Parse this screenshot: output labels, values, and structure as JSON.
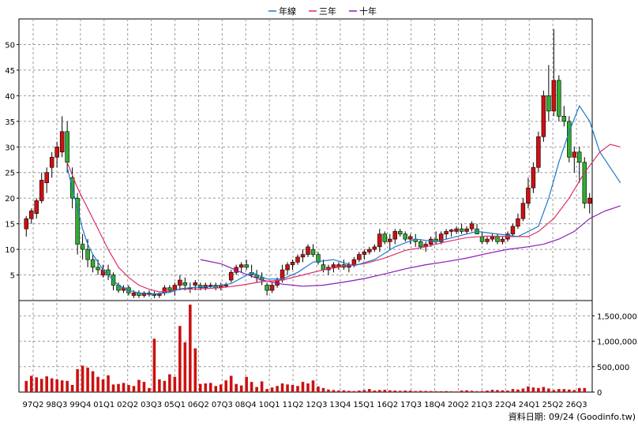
{
  "chart_data": {
    "type": "candlestick",
    "legend": [
      {
        "label": "年線",
        "color": "#1f77c8"
      },
      {
        "label": "三年",
        "color": "#dc2e64"
      },
      {
        "label": "十年",
        "color": "#8a1ab8"
      }
    ],
    "x_ticks": [
      "97Q2",
      "98Q3",
      "99Q4",
      "01Q1",
      "02Q2",
      "03Q3",
      "05Q1",
      "06Q2",
      "07Q3",
      "08Q4",
      "10Q1",
      "11Q2",
      "12Q3",
      "13Q4",
      "15Q1",
      "16Q2",
      "17Q3",
      "18Q4",
      "20Q2",
      "21Q3",
      "22Q4",
      "24Q1",
      "25Q2",
      "26Q3"
    ],
    "price_ticks": [
      "5",
      "10",
      "15",
      "20",
      "25",
      "30",
      "35",
      "40",
      "45",
      "50"
    ],
    "price_ylim": [
      0,
      55
    ],
    "volume_ticks": [
      "0",
      "500,000",
      "1,000,000",
      "1,500,000"
    ],
    "volume_ylim": [
      0,
      1800000
    ],
    "grid": true,
    "colors": {
      "up": "#d01010",
      "down": "#2fae2f",
      "volume": "#cc1111"
    },
    "candles": [
      [
        14,
        16.5,
        12.5,
        16
      ],
      [
        16,
        18,
        15,
        17.5
      ],
      [
        17,
        20,
        16,
        19.5
      ],
      [
        19.5,
        25,
        19,
        23.5
      ],
      [
        23,
        26,
        21,
        25
      ],
      [
        26,
        29,
        24,
        28
      ],
      [
        28,
        31,
        26,
        30
      ],
      [
        29,
        36,
        28,
        33
      ],
      [
        33,
        35,
        25,
        27
      ],
      [
        24,
        26,
        18,
        20
      ],
      [
        20,
        21,
        9,
        11
      ],
      [
        11,
        13,
        8,
        10
      ],
      [
        10,
        12,
        6.5,
        8
      ],
      [
        8,
        9,
        5.5,
        6.5
      ],
      [
        6.5,
        8,
        5,
        6
      ],
      [
        5,
        7,
        4.5,
        6
      ],
      [
        6,
        7,
        4,
        5
      ],
      [
        5,
        5.5,
        2,
        3
      ],
      [
        3,
        3.5,
        1.5,
        2
      ],
      [
        2,
        3,
        1.5,
        2.5
      ],
      [
        2.5,
        3,
        1,
        1.5
      ],
      [
        1,
        2,
        0.5,
        1.5
      ],
      [
        1.5,
        2,
        0.5,
        1
      ],
      [
        1,
        1.8,
        0.6,
        1.5
      ],
      [
        1.5,
        2,
        0.8,
        1.2
      ],
      [
        1.2,
        1.8,
        0.5,
        1
      ],
      [
        1,
        1.5,
        0.5,
        1.3
      ],
      [
        1.5,
        3,
        1,
        2.5
      ],
      [
        2.5,
        3,
        1.5,
        2
      ],
      [
        2,
        3.5,
        1,
        3
      ],
      [
        3,
        5,
        2,
        4
      ],
      [
        3.5,
        4.5,
        2,
        3
      ],
      [
        2.5,
        3.5,
        1.5,
        2.5
      ],
      [
        3,
        4,
        2,
        3.5
      ],
      [
        3,
        3.5,
        2,
        2.5
      ],
      [
        2.5,
        3.5,
        2,
        3
      ],
      [
        3,
        3.5,
        2.5,
        3
      ],
      [
        3,
        3.5,
        2,
        2.5
      ],
      [
        2.5,
        3.5,
        2,
        3
      ],
      [
        3,
        3.5,
        2.5,
        3
      ],
      [
        4,
        6,
        3.5,
        5.5
      ],
      [
        5.5,
        7,
        5,
        6.5
      ],
      [
        6.5,
        7.5,
        5.5,
        7
      ],
      [
        7,
        8,
        6,
        6.5
      ],
      [
        5.5,
        7,
        4.5,
        5
      ],
      [
        5,
        6,
        3.5,
        4.5
      ],
      [
        4.5,
        5.5,
        3,
        4
      ],
      [
        3,
        3.5,
        1,
        2
      ],
      [
        2,
        3.5,
        1.5,
        3
      ],
      [
        3,
        4.5,
        2.5,
        4
      ],
      [
        4,
        7,
        3.5,
        6
      ],
      [
        6,
        7.5,
        5,
        7
      ],
      [
        7,
        8,
        6,
        7.5
      ],
      [
        7.5,
        9,
        7,
        8.5
      ],
      [
        8.5,
        10,
        7.5,
        9
      ],
      [
        9,
        11,
        8.5,
        10.5
      ],
      [
        10,
        11,
        8.5,
        9
      ],
      [
        9,
        9.5,
        7,
        7.5
      ],
      [
        7,
        8,
        5.5,
        6
      ],
      [
        6,
        7,
        5,
        6.5
      ],
      [
        6.5,
        7.5,
        5.5,
        7
      ],
      [
        6.5,
        7.5,
        6,
        7
      ],
      [
        7,
        8,
        6,
        6.5
      ],
      [
        6.5,
        7.5,
        5.5,
        7
      ],
      [
        7,
        8.5,
        6.5,
        8
      ],
      [
        8,
        9.5,
        7.5,
        9
      ],
      [
        9,
        10,
        8,
        9.5
      ],
      [
        9.5,
        10.5,
        9,
        10
      ],
      [
        10,
        11,
        9.5,
        10.5
      ],
      [
        10.5,
        14,
        9.5,
        13
      ],
      [
        13,
        13.5,
        11,
        11.5
      ],
      [
        11.5,
        13,
        10,
        12
      ],
      [
        12,
        14,
        11,
        13.5
      ],
      [
        13.5,
        14,
        12.5,
        13
      ],
      [
        13,
        13.5,
        11.5,
        12
      ],
      [
        12,
        13,
        11,
        12.5
      ],
      [
        12,
        13,
        10.5,
        11.5
      ],
      [
        11.5,
        12,
        10,
        10.5
      ],
      [
        10.5,
        11.5,
        9.5,
        11
      ],
      [
        11,
        12.5,
        10.5,
        12
      ],
      [
        12,
        13.5,
        11,
        11.5
      ],
      [
        11.5,
        13.5,
        11,
        13
      ],
      [
        13,
        14,
        12,
        13.5
      ],
      [
        13.5,
        14,
        12.5,
        13.8
      ],
      [
        13.5,
        14.5,
        13,
        14
      ],
      [
        14,
        15,
        13,
        13.5
      ],
      [
        13.5,
        14.5,
        13,
        14
      ],
      [
        14,
        15.5,
        13.5,
        15
      ],
      [
        14,
        15,
        13,
        13
      ],
      [
        12.5,
        13.5,
        11,
        11.5
      ],
      [
        11.5,
        12.5,
        11,
        12
      ],
      [
        12,
        13,
        11.5,
        12.5
      ],
      [
        12.5,
        13,
        11,
        11.5
      ],
      [
        11.5,
        12.5,
        11,
        12
      ],
      [
        12,
        13.5,
        11.5,
        13
      ],
      [
        13,
        15,
        12.5,
        14.5
      ],
      [
        14.5,
        17,
        14,
        16
      ],
      [
        16,
        20,
        15.5,
        19
      ],
      [
        19,
        24,
        18,
        22
      ],
      [
        22,
        27,
        21,
        26
      ],
      [
        26,
        33,
        25,
        32
      ],
      [
        32,
        41,
        31,
        40
      ],
      [
        40,
        46,
        35,
        37
      ],
      [
        37,
        53,
        36,
        43
      ],
      [
        43,
        44,
        35,
        36
      ],
      [
        36,
        38,
        34,
        35
      ],
      [
        35,
        36,
        27,
        28
      ],
      [
        28,
        30,
        25,
        29
      ],
      [
        29,
        30,
        23,
        27
      ],
      [
        27,
        28,
        18,
        19
      ],
      [
        19,
        21,
        17,
        20
      ]
    ],
    "volumes": [
      220000,
      320000,
      290000,
      260000,
      310000,
      270000,
      250000,
      230000,
      220000,
      140000,
      450000,
      520000,
      480000,
      410000,
      300000,
      250000,
      330000,
      150000,
      160000,
      180000,
      140000,
      120000,
      240000,
      200000,
      80000,
      1050000,
      250000,
      220000,
      350000,
      300000,
      1300000,
      980000,
      1720000,
      860000,
      160000,
      170000,
      180000,
      120000,
      150000,
      230000,
      320000,
      160000,
      130000,
      300000,
      200000,
      100000,
      210000,
      60000,
      90000,
      120000,
      170000,
      150000,
      140000,
      120000,
      200000,
      170000,
      230000,
      110000,
      80000,
      50000,
      40000,
      30000,
      35000,
      25000,
      20000,
      30000,
      40000,
      60000,
      30000,
      40000,
      45000,
      35000,
      30000,
      25000,
      30000,
      28000,
      20000,
      25000,
      22000,
      20000,
      18000,
      16000,
      20000,
      15000,
      14000,
      30000,
      35000,
      25000,
      18000,
      20000,
      30000,
      45000,
      40000,
      35000,
      30000,
      60000,
      50000,
      70000,
      110000,
      90000,
      80000,
      100000,
      70000,
      40000,
      60000,
      60000,
      50000,
      40000,
      80000,
      80000
    ],
    "ma_year": [
      [
        8,
        26
      ],
      [
        9,
        22
      ],
      [
        10,
        18
      ],
      [
        11,
        14
      ],
      [
        12,
        11
      ],
      [
        13,
        9
      ],
      [
        14,
        7.5
      ],
      [
        15,
        6
      ],
      [
        16,
        5
      ],
      [
        17,
        4
      ],
      [
        18,
        3
      ],
      [
        19,
        2.5
      ],
      [
        20,
        2
      ],
      [
        22,
        1.5
      ],
      [
        25,
        1.3
      ],
      [
        28,
        1.6
      ],
      [
        30,
        2.3
      ],
      [
        33,
        2.6
      ],
      [
        36,
        2.7
      ],
      [
        40,
        3.3
      ],
      [
        44,
        5.5
      ],
      [
        47,
        4.2
      ],
      [
        50,
        4.2
      ],
      [
        53,
        5.5
      ],
      [
        56,
        7.5
      ],
      [
        60,
        8
      ],
      [
        64,
        6.8
      ],
      [
        68,
        8
      ],
      [
        72,
        10.5
      ],
      [
        76,
        12
      ],
      [
        80,
        11.5
      ],
      [
        84,
        12.5
      ],
      [
        88,
        13.5
      ],
      [
        92,
        13
      ],
      [
        96,
        12.5
      ],
      [
        100,
        14.5
      ],
      [
        102,
        20
      ],
      [
        104,
        27
      ],
      [
        106,
        33
      ],
      [
        108,
        38
      ],
      [
        110,
        35
      ],
      [
        112,
        29
      ],
      [
        114,
        26
      ],
      [
        116,
        23
      ]
    ],
    "ma_three": [
      [
        8,
        27
      ],
      [
        10,
        22
      ],
      [
        12,
        18
      ],
      [
        14,
        14
      ],
      [
        16,
        10
      ],
      [
        18,
        6.5
      ],
      [
        20,
        4.5
      ],
      [
        22,
        3
      ],
      [
        24,
        2.2
      ],
      [
        26,
        1.7
      ],
      [
        28,
        1.8
      ],
      [
        30,
        2.2
      ],
      [
        34,
        2.3
      ],
      [
        38,
        2.5
      ],
      [
        42,
        3
      ],
      [
        46,
        3.7
      ],
      [
        50,
        4
      ],
      [
        54,
        5
      ],
      [
        58,
        6
      ],
      [
        62,
        6.7
      ],
      [
        66,
        7.2
      ],
      [
        70,
        8.3
      ],
      [
        74,
        9.8
      ],
      [
        78,
        10.5
      ],
      [
        82,
        11.5
      ],
      [
        86,
        12.3
      ],
      [
        90,
        12.6
      ],
      [
        94,
        12.5
      ],
      [
        98,
        12.5
      ],
      [
        100,
        13.5
      ],
      [
        103,
        16
      ],
      [
        106,
        20
      ],
      [
        109,
        25
      ],
      [
        112,
        29
      ],
      [
        114,
        30.5
      ],
      [
        116,
        30
      ]
    ],
    "ma_ten": [
      [
        34,
        8
      ],
      [
        38,
        7.2
      ],
      [
        42,
        5.5
      ],
      [
        46,
        4
      ],
      [
        50,
        3.2
      ],
      [
        54,
        2.8
      ],
      [
        58,
        3
      ],
      [
        62,
        3.6
      ],
      [
        66,
        4.3
      ],
      [
        70,
        5.2
      ],
      [
        74,
        6.2
      ],
      [
        78,
        7
      ],
      [
        82,
        7.6
      ],
      [
        86,
        8.3
      ],
      [
        90,
        9.2
      ],
      [
        94,
        10
      ],
      [
        98,
        10.5
      ],
      [
        101,
        11
      ],
      [
        104,
        12
      ],
      [
        107,
        13.5
      ],
      [
        110,
        16
      ],
      [
        113,
        17.5
      ],
      [
        116,
        18.5
      ]
    ],
    "footer": "資料日期: 09/24  (Goodinfo.tw)"
  }
}
